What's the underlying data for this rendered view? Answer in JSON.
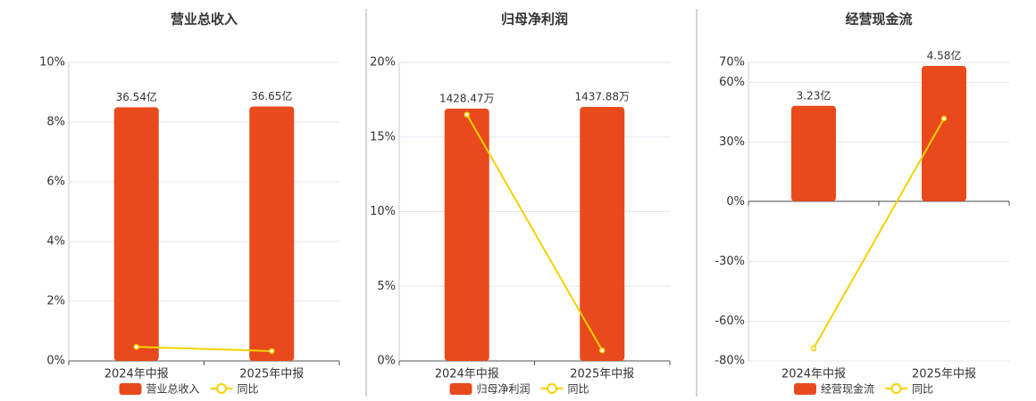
{
  "chart_data": [
    {
      "type": "combo",
      "title": "营业总收入",
      "categories": [
        "2024年中报",
        "2025年中报"
      ],
      "series": [
        {
          "name": "营业总收入",
          "color": "#e84a1b",
          "axis": "y2",
          "values": [
            36.54,
            36.65
          ],
          "value_labels": [
            "36.54亿",
            "36.65亿"
          ]
        },
        {
          "name": "同比",
          "color": "#f5d200",
          "axis": "y",
          "values": [
            0.47,
            0.33
          ]
        }
      ],
      "ylim": [
        0,
        10
      ],
      "yticks": [
        {
          "value": 0,
          "label": "0%"
        },
        {
          "value": 2,
          "label": "2%"
        },
        {
          "value": 4,
          "label": "4%"
        },
        {
          "value": 6,
          "label": "6%"
        },
        {
          "value": 8,
          "label": "8%"
        },
        {
          "value": 10,
          "label": "10%"
        }
      ],
      "y2lim": [
        0,
        43
      ],
      "grid": true
    },
    {
      "type": "combo",
      "title": "归母净利润",
      "categories": [
        "2024年中报",
        "2025年中报"
      ],
      "series": [
        {
          "name": "归母净利润",
          "color": "#e84a1b",
          "axis": "y2",
          "values": [
            1428.47,
            1437.88
          ],
          "value_labels": [
            "1428.47万",
            "1437.88万"
          ]
        },
        {
          "name": "同比",
          "color": "#f5d200",
          "axis": "y",
          "values": [
            16.5,
            0.7
          ]
        }
      ],
      "ylim": [
        0,
        20
      ],
      "yticks": [
        {
          "value": 0,
          "label": "0%"
        },
        {
          "value": 5,
          "label": "5%"
        },
        {
          "value": 10,
          "label": "10%"
        },
        {
          "value": 15,
          "label": "15%"
        },
        {
          "value": 20,
          "label": "20%"
        }
      ],
      "y2lim": [
        0,
        1690
      ],
      "grid": true
    },
    {
      "type": "combo",
      "title": "经营现金流",
      "categories": [
        "2024年中报",
        "2025年中报"
      ],
      "series": [
        {
          "name": "经营现金流",
          "color": "#e84a1b",
          "axis": "y2",
          "values": [
            3.23,
            4.58
          ],
          "value_labels": [
            "3.23亿",
            "4.58亿"
          ]
        },
        {
          "name": "同比",
          "color": "#f5d200",
          "axis": "y",
          "values": [
            -73.7,
            41.8
          ]
        }
      ],
      "ylim": [
        -80,
        70
      ],
      "yticks": [
        {
          "value": -80,
          "label": "-80%"
        },
        {
          "value": -60,
          "label": "-60%"
        },
        {
          "value": -30,
          "label": "-30%"
        },
        {
          "value": 0,
          "label": "0%"
        },
        {
          "value": 30,
          "label": "30%"
        },
        {
          "value": 60,
          "label": "60%"
        },
        {
          "value": 70,
          "label": "70%"
        }
      ],
      "y2lim": [
        -5.4,
        4.7
      ],
      "grid": true
    }
  ]
}
